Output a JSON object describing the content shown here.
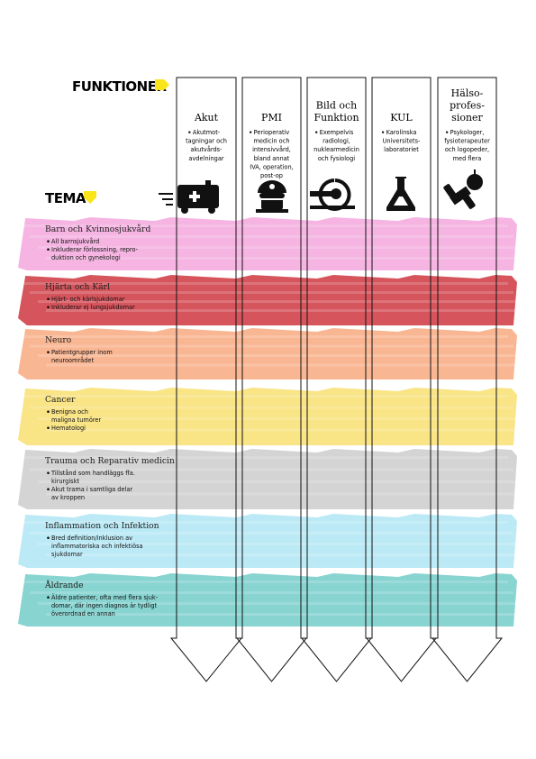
{
  "header": {
    "funktioner": "FUNKTIONER",
    "tema": "TEMA"
  },
  "columns": [
    {
      "title": [
        "Akut"
      ],
      "bullet": [
        "Akutmot-",
        "tagningar och",
        "akutvårds-",
        "avdelningar"
      ]
    },
    {
      "title": [
        "PMI"
      ],
      "bullet": [
        "Perioperativ",
        "medicin och",
        "intensivvård,",
        "bland annat",
        "IVA, operation,",
        "post-op"
      ]
    },
    {
      "title": [
        "Bild och",
        "Funktion"
      ],
      "bullet": [
        "Exempelvis",
        "radiologi,",
        "nuklearmedicin",
        "och fysiologi"
      ]
    },
    {
      "title": [
        "KUL"
      ],
      "bullet": [
        "Karolinska",
        "Universitets-",
        "laboratoriet"
      ]
    },
    {
      "title": [
        "Hälso-",
        "profes-",
        "sioner"
      ],
      "bullet": [
        "Psykologer,",
        "fysioterapeuter",
        "och logopeder,",
        "med flera"
      ]
    }
  ],
  "themes": [
    {
      "title": "Barn och Kvinnosjukvård",
      "color": "#f4aee0",
      "bullets": [
        [
          "All barnsjukvård"
        ],
        [
          "Inkluderar förlossning, repro-",
          "duktion och gynekologi"
        ]
      ]
    },
    {
      "title": "Hjärta och Kärl",
      "color": "#d3474f",
      "bullets": [
        [
          "Hjärt- och kärlsjukdomar"
        ],
        [
          "Inkluderar ej lungsjukdomar"
        ]
      ]
    },
    {
      "title": "Neuro",
      "color": "#f9b08a",
      "bullets": [
        [
          "Patientgrupper inom",
          "neuroområdet"
        ]
      ]
    },
    {
      "title": "Cancer",
      "color": "#f8e27c",
      "bullets": [
        [
          "Benigna och",
          "maligna tumörer"
        ],
        [
          "Hematologi"
        ]
      ]
    },
    {
      "title": "Trauma och Reparativ medicin",
      "color": "#d0d0d0",
      "bullets": [
        [
          "Tillstånd som handläggs ffa.",
          "kirurgiskt"
        ],
        [
          "Akut trama i samtliga delar",
          "av kroppen"
        ]
      ]
    },
    {
      "title": "Inflammation och Infektion",
      "color": "#b5e8f5",
      "bullets": [
        [
          "Bred definition/inklusion av",
          "inflammatoriska och infektiösa",
          "sjukdomar"
        ]
      ]
    },
    {
      "title": "Åldrande",
      "color": "#7dd0cd",
      "bullets": [
        [
          "Äldre patienter, ofta med flera sjuk-",
          "domar, där ingen diagnos är tydligt",
          "överordnad en annan"
        ]
      ]
    }
  ]
}
